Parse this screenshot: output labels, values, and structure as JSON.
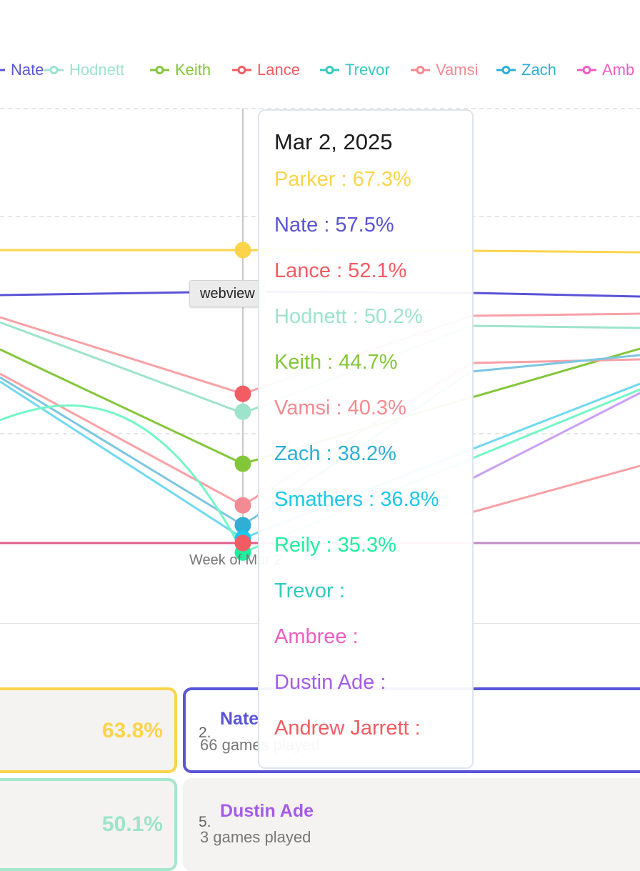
{
  "legend": [
    {
      "name": "Nate",
      "color": "#5a54d6"
    },
    {
      "name": "Hodnett",
      "color": "#9ee3cc"
    },
    {
      "name": "Keith",
      "color": "#84c63a"
    },
    {
      "name": "Lance",
      "color": "#f25c62"
    },
    {
      "name": "Trevor",
      "color": "#36c9c0"
    },
    {
      "name": "Vamsi",
      "color": "#f48a92"
    },
    {
      "name": "Zach",
      "color": "#2faed6"
    },
    {
      "name": "Amb",
      "color": "#ec5fc1"
    }
  ],
  "chart_data": {
    "type": "line",
    "x_tick_label": "Week of Mar 2",
    "hovered_date": "Mar 2, 2025",
    "series": [
      {
        "name": "Parker",
        "color": "#fbd44b",
        "value": 67.3
      },
      {
        "name": "Nate",
        "color": "#5a54d6",
        "value": 57.5
      },
      {
        "name": "Lance",
        "color": "#f25c62",
        "value": 52.1
      },
      {
        "name": "Hodnett",
        "color": "#9ee3cc",
        "value": 50.2
      },
      {
        "name": "Keith",
        "color": "#84c63a",
        "value": 44.7
      },
      {
        "name": "Vamsi",
        "color": "#f48a92",
        "value": 40.3
      },
      {
        "name": "Zach",
        "color": "#2faed6",
        "value": 38.2
      },
      {
        "name": "Smathers",
        "color": "#1cc8ea",
        "value": 36.8
      },
      {
        "name": "Reily",
        "color": "#20ef9f",
        "value": 35.3
      },
      {
        "name": "Trevor",
        "color": "#36c9c0",
        "value": null
      },
      {
        "name": "Ambree",
        "color": "#ec5fc1",
        "value": null
      },
      {
        "name": "Dustin Ade",
        "color": "#a55be9",
        "value": null
      },
      {
        "name": "Andrew Jarrett",
        "color": "#f25c62",
        "value": null
      }
    ]
  },
  "tooltip": {
    "title": "Mar 2, 2025",
    "rows": [
      {
        "text": "Parker : 67.3%",
        "color": "#fbd44b"
      },
      {
        "text": "Nate : 57.5%",
        "color": "#5a54d6"
      },
      {
        "text": "Lance : 52.1%",
        "color": "#f25c62"
      },
      {
        "text": "Hodnett : 50.2%",
        "color": "#9ee3cc"
      },
      {
        "text": "Keith : 44.7%",
        "color": "#84c63a"
      },
      {
        "text": "Vamsi : 40.3%",
        "color": "#f48a92"
      },
      {
        "text": "Zach : 38.2%",
        "color": "#2faed6"
      },
      {
        "text": "Smathers : 36.8%",
        "color": "#1cc8ea"
      },
      {
        "text": "Reily : 35.3%",
        "color": "#20ef9f"
      },
      {
        "text": "Trevor :",
        "color": "#36c9c0"
      },
      {
        "text": "Ambree :",
        "color": "#ec5fc1"
      },
      {
        "text": "Dustin Ade :",
        "color": "#a55be9"
      },
      {
        "text": "Andrew Jarrett :",
        "color": "#f25c62"
      }
    ]
  },
  "webview_label": "webview",
  "leaderboard": {
    "card1": {
      "pct": "63.8%",
      "color": "#fbd44b"
    },
    "card2": {
      "rank": "2.",
      "name": "Nate",
      "games": "66 games played",
      "color": "#5a54d6"
    },
    "card4": {
      "pct": "50.1%",
      "color": "#9ee3cc"
    },
    "card5": {
      "rank": "5.",
      "name": "Dustin Ade",
      "games": "3 games played",
      "color": "#a55be9"
    }
  }
}
